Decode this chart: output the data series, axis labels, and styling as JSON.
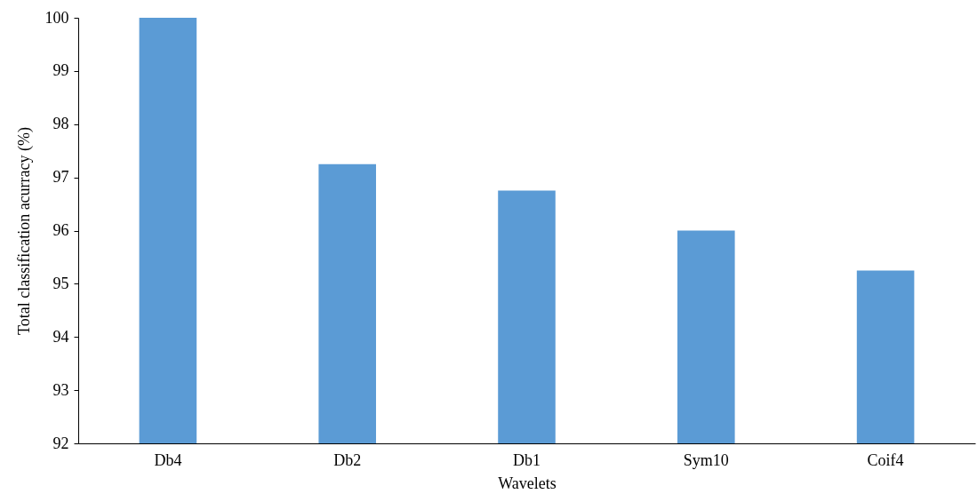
{
  "chart_data": {
    "type": "bar",
    "xlabel": "Wavelets",
    "ylabel": "Total classification acurracy (%)",
    "categories": [
      "Db4",
      "Db2",
      "Db1",
      "Sym10",
      "Coif4"
    ],
    "values": [
      100,
      97.25,
      96.75,
      96,
      95.25
    ],
    "color": "#5b9bd5",
    "ylim": [
      92,
      100
    ],
    "yticks": [
      92,
      93,
      94,
      95,
      96,
      97,
      98,
      99,
      100
    ],
    "grid": false
  }
}
